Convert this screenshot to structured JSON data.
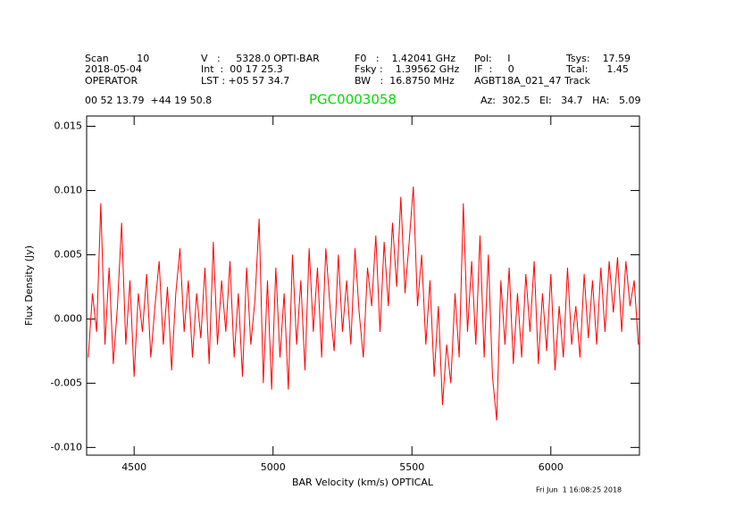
{
  "header": {
    "rows": [
      [
        "Scan         10",
        "V   :     5328.0 OPTI-BAR",
        "F0   :    1.42041 GHz",
        "Pol:     I",
        "Tsys:    17.59"
      ],
      [
        "2018-05-04",
        "Int  :  00 17 25.3",
        "Fsky :    1.39562 GHz",
        "IF  :     0",
        "Tcal:      1.45"
      ],
      [
        "OPERATOR",
        "LST : +05 57 34.7",
        "BW   :  16.8750 MHz",
        "AGBT18A_021_47 Track"
      ],
      [
        "00 52 13.79  +44 19 50.8",
        "Az:  302.5   El:   34.7   HA:   5.09"
      ]
    ],
    "timestamp": "Fri Jun  1 16:08:25 2018"
  },
  "chart_data": {
    "type": "line",
    "title": "PGC0003058",
    "title_color": "#00dd00",
    "xlabel": "BAR Velocity (km/s) OPTICAL",
    "ylabel": "Flux Density (Jy)",
    "xlim": [
      4329,
      6319
    ],
    "ylim": [
      -0.0106,
      0.0158
    ],
    "xticks": [
      4500,
      5000,
      5500,
      6000
    ],
    "yticks": [
      0.015,
      {
        "value": 0.01,
        "label": "0.010"
      },
      0.005,
      {
        "value": 0,
        "label": "0.000"
      },
      -0.005,
      {
        "value": -0.01,
        "label": "-0.010"
      }
    ],
    "x": [
      4335,
      4350,
      4365,
      4380,
      4395,
      4410,
      4425,
      4440,
      4455,
      4470,
      4485,
      4500,
      4515,
      4530,
      4545,
      4560,
      4575,
      4590,
      4605,
      4620,
      4635,
      4650,
      4665,
      4680,
      4695,
      4710,
      4725,
      4740,
      4755,
      4770,
      4785,
      4800,
      4815,
      4830,
      4845,
      4860,
      4875,
      4890,
      4905,
      4920,
      4935,
      4950,
      4965,
      4980,
      4995,
      5010,
      5025,
      5040,
      5055,
      5070,
      5085,
      5100,
      5115,
      5130,
      5145,
      5160,
      5175,
      5190,
      5205,
      5220,
      5235,
      5250,
      5265,
      5280,
      5295,
      5310,
      5325,
      5340,
      5355,
      5370,
      5385,
      5400,
      5415,
      5430,
      5445,
      5460,
      5475,
      5490,
      5505,
      5520,
      5535,
      5550,
      5565,
      5580,
      5595,
      5610,
      5625,
      5640,
      5655,
      5670,
      5685,
      5700,
      5715,
      5730,
      5745,
      5760,
      5775,
      5790,
      5805,
      5820,
      5835,
      5850,
      5865,
      5880,
      5895,
      5910,
      5925,
      5940,
      5955,
      5970,
      5985,
      6000,
      6015,
      6030,
      6045,
      6060,
      6075,
      6090,
      6105,
      6120,
      6135,
      6150,
      6165,
      6180,
      6195,
      6210,
      6225,
      6240,
      6255,
      6270,
      6285,
      6300,
      6315
    ],
    "series": [
      {
        "name": "PGC0003058",
        "color": "#ff0000",
        "values": [
          -0.003,
          0.002,
          -0.001,
          0.009,
          -0.002,
          0.004,
          -0.0035,
          0.001,
          0.0075,
          -0.002,
          0.003,
          -0.0045,
          0.002,
          -0.001,
          0.0035,
          -0.003,
          0.001,
          0.0045,
          -0.002,
          0.0025,
          -0.004,
          0.002,
          0.0055,
          -0.001,
          0.003,
          -0.003,
          0.002,
          -0.0015,
          0.004,
          -0.0035,
          0.006,
          -0.002,
          0.003,
          -0.001,
          0.0045,
          -0.003,
          0.002,
          -0.0045,
          0.004,
          -0.002,
          0.0015,
          0.0078,
          -0.005,
          0.003,
          -0.0055,
          0.004,
          -0.003,
          0.002,
          -0.0055,
          0.005,
          -0.002,
          0.003,
          -0.004,
          0.0055,
          -0.001,
          0.004,
          -0.003,
          0.0055,
          0.001,
          -0.0025,
          0.005,
          -0.001,
          0.003,
          -0.002,
          0.0055,
          0.0005,
          -0.003,
          0.004,
          0.001,
          0.0065,
          -0.001,
          0.006,
          0.001,
          0.0075,
          0.0025,
          0.0095,
          0.002,
          0.006,
          0.0103,
          0.001,
          0.005,
          -0.002,
          0.003,
          -0.0045,
          0.001,
          -0.0067,
          -0.002,
          -0.005,
          0.002,
          -0.003,
          0.009,
          -0.001,
          0.0045,
          -0.002,
          0.0065,
          -0.003,
          0.005,
          -0.0045,
          -0.0079,
          0.003,
          -0.002,
          0.004,
          -0.0035,
          0.002,
          -0.003,
          0.0035,
          -0.001,
          0.0045,
          -0.0035,
          0.002,
          -0.0025,
          0.0035,
          -0.004,
          0.001,
          -0.003,
          0.004,
          -0.002,
          0.001,
          -0.003,
          0.0035,
          -0.0015,
          0.003,
          -0.002,
          0.004,
          -0.001,
          0.0045,
          0.0005,
          0.0048,
          -0.001,
          0.0045,
          0.001,
          0.003,
          -0.002
        ]
      }
    ]
  }
}
